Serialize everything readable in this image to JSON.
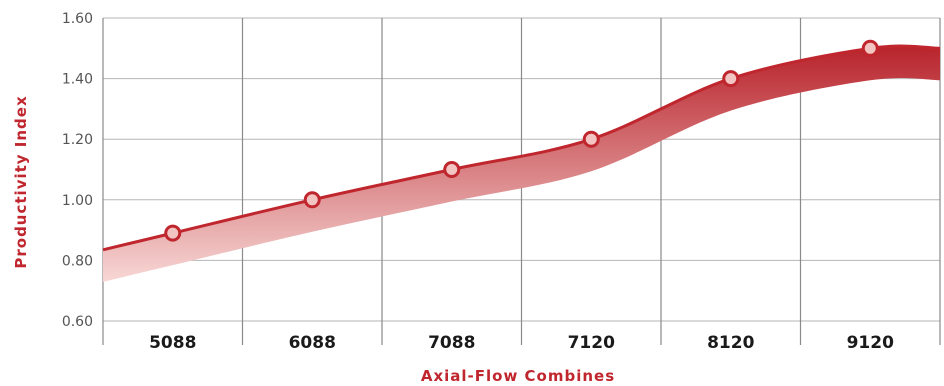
{
  "chart_data": {
    "type": "area",
    "title": "",
    "xlabel": "Axial-Flow Combines",
    "ylabel": "Productivity Index",
    "categories": [
      "5088",
      "6088",
      "7088",
      "7120",
      "8120",
      "9120"
    ],
    "values": [
      0.89,
      1.0,
      1.1,
      1.2,
      1.4,
      1.5
    ],
    "y_ticks": [
      "0.60",
      "0.80",
      "1.00",
      "1.20",
      "1.40",
      "1.60"
    ],
    "ylim": [
      0.6,
      1.6
    ],
    "grid": true,
    "legend": "none",
    "colors": {
      "line": "#c0262d",
      "fill_dark": "#b8232b",
      "fill_light": "#f7d7d5",
      "marker_fill": "#f2c4c2",
      "grid": "#b5b5b5",
      "axis_title": "#c0262d"
    }
  }
}
